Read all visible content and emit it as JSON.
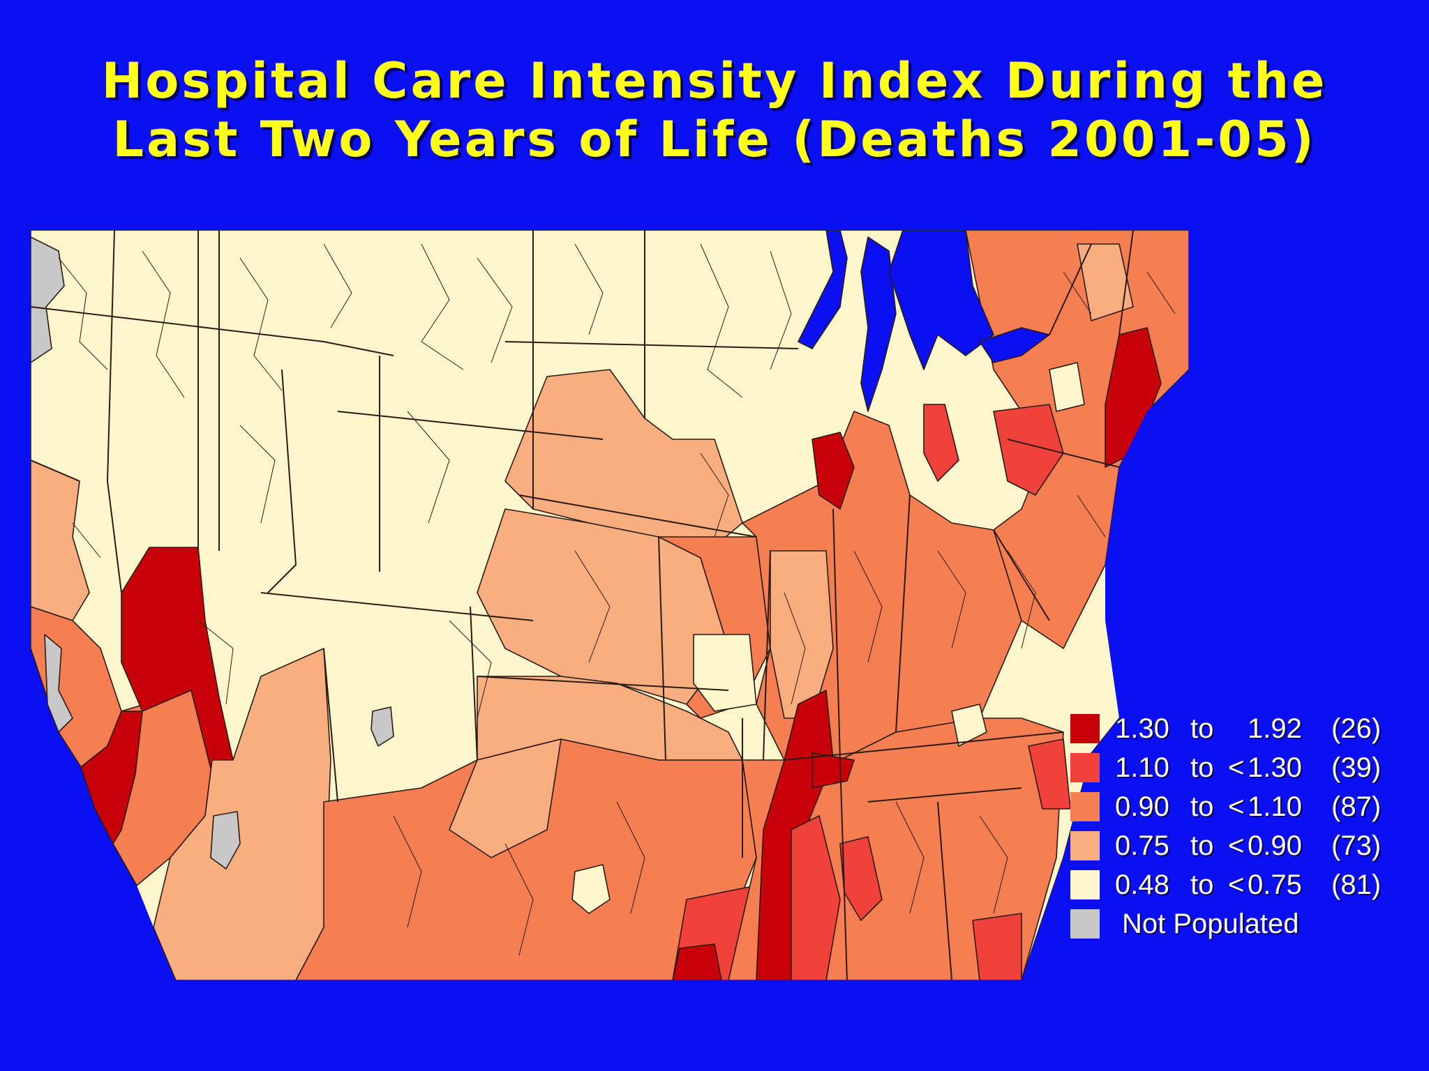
{
  "title": {
    "line1": "Hospital Care Intensity Index During the",
    "line2": "Last Two Years of Life (Deaths 2001-05)"
  },
  "colors": {
    "background": "#0a10f2",
    "water": "#0a10f2",
    "title_text": "#ffff1a",
    "border": "#2b1a12"
  },
  "legend": {
    "items": [
      {
        "from": "1.30",
        "to_word": "to",
        "lt": "",
        "upto": "1.92",
        "count": "(26)",
        "color": "#c8000a"
      },
      {
        "from": "1.10",
        "to_word": "to",
        "lt": "<",
        "upto": "1.30",
        "count": "(39)",
        "color": "#f0413a"
      },
      {
        "from": "0.90",
        "to_word": "to",
        "lt": "<",
        "upto": "1.10",
        "count": "(87)",
        "color": "#f57f52"
      },
      {
        "from": "0.75",
        "to_word": "to",
        "lt": "<",
        "upto": "0.90",
        "count": "(73)",
        "color": "#f9ae80"
      },
      {
        "from": "0.48",
        "to_word": "to",
        "lt": "<",
        "upto": "0.75",
        "count": "(81)",
        "color": "#fdf6cc"
      }
    ],
    "not_populated": {
      "label": "Not Populated",
      "color": "#c8c8c8"
    }
  }
}
